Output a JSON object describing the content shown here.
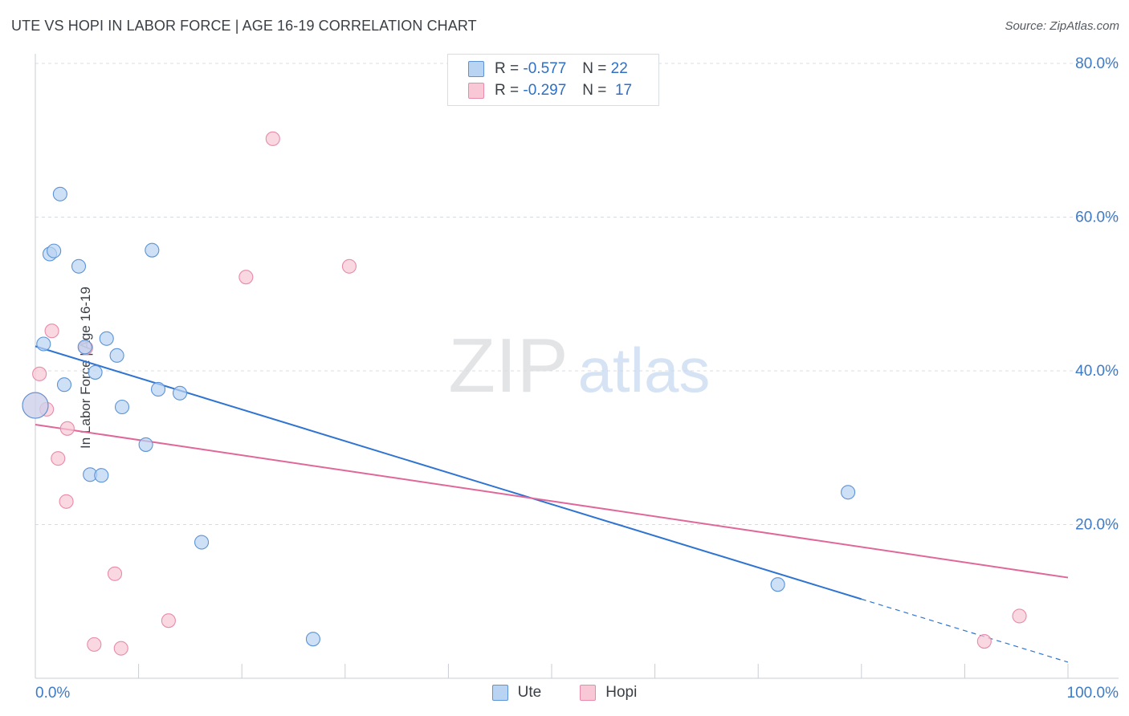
{
  "title": "UTE VS HOPI IN LABOR FORCE | AGE 16-19 CORRELATION CHART",
  "source": "Source: ZipAtlas.com",
  "watermark": {
    "zip": "ZIP",
    "atlas": "atlas"
  },
  "legend_top": {
    "rows": [
      {
        "r_label": "R =",
        "r_value": "-0.577",
        "n_label": "N =",
        "n_value": "22"
      },
      {
        "r_label": "R =",
        "r_value": "-0.297",
        "n_label": "N =",
        "n_value": "17"
      }
    ]
  },
  "chart_data": {
    "type": "scatter",
    "title": "UTE VS HOPI IN LABOR FORCE | AGE 16-19 CORRELATION CHART",
    "xlabel": "",
    "ylabel": "In Labor Force | Age 16-19",
    "xlim": [
      0,
      100
    ],
    "ylim": [
      0,
      80
    ],
    "x_tick_labels": [
      "0.0%",
      "100.0%"
    ],
    "y_ticks": [
      20,
      40,
      60,
      80
    ],
    "y_tick_labels": [
      "20.0%",
      "40.0%",
      "60.0%",
      "80.0%"
    ],
    "grid": true,
    "series": [
      {
        "name": "Ute",
        "color": "#5b93d6",
        "fill": "#b9d3f2",
        "line_color": "#2f74d0",
        "points": [
          [
            0.0,
            35.5
          ],
          [
            0.8,
            43.5
          ],
          [
            1.4,
            55.2
          ],
          [
            1.8,
            55.6
          ],
          [
            2.4,
            63.0
          ],
          [
            2.8,
            38.2
          ],
          [
            4.2,
            53.6
          ],
          [
            4.8,
            43.1
          ],
          [
            5.3,
            26.5
          ],
          [
            5.8,
            39.8
          ],
          [
            6.4,
            26.4
          ],
          [
            6.9,
            44.2
          ],
          [
            7.9,
            42.0
          ],
          [
            8.4,
            35.3
          ],
          [
            10.7,
            30.4
          ],
          [
            11.3,
            55.7
          ],
          [
            11.9,
            37.6
          ],
          [
            14.0,
            37.1
          ],
          [
            16.1,
            17.7
          ],
          [
            26.9,
            5.1
          ],
          [
            71.9,
            12.2
          ],
          [
            78.7,
            24.2
          ]
        ],
        "trend": {
          "x": [
            0,
            80
          ],
          "y": [
            43.2,
            10.3
          ]
        },
        "trend_dashed": {
          "x": [
            80,
            100
          ],
          "y": [
            10.3,
            2.1
          ]
        }
      },
      {
        "name": "Hopi",
        "color": "#e98aa8",
        "fill": "#f8c8d6",
        "line_color": "#e0679a",
        "points": [
          [
            0.4,
            39.6
          ],
          [
            1.1,
            35.0
          ],
          [
            1.6,
            45.2
          ],
          [
            2.2,
            28.6
          ],
          [
            3.0,
            23.0
          ],
          [
            3.1,
            32.5
          ],
          [
            4.9,
            43.0
          ],
          [
            5.7,
            4.4
          ],
          [
            7.7,
            13.6
          ],
          [
            8.3,
            3.9
          ],
          [
            12.9,
            7.5
          ],
          [
            20.4,
            52.2
          ],
          [
            23.0,
            70.2
          ],
          [
            30.4,
            53.6
          ],
          [
            91.9,
            4.8
          ],
          [
            95.3,
            8.1
          ],
          [
            0.0,
            35.5
          ]
        ],
        "trend": {
          "x": [
            0,
            100
          ],
          "y": [
            33.0,
            13.1
          ]
        }
      }
    ]
  }
}
